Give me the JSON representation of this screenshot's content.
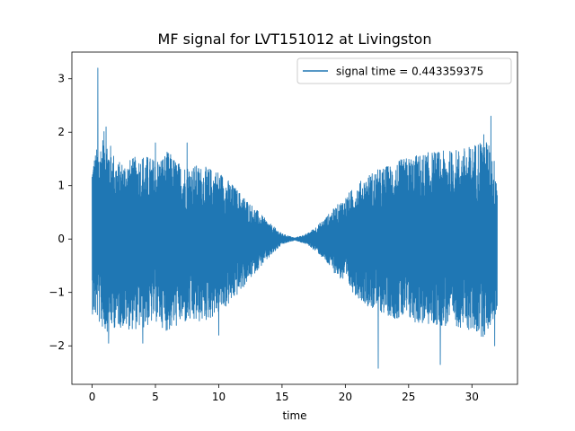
{
  "chart_data": {
    "type": "line",
    "title": "MF signal for LVT151012 at Livingston",
    "xlabel": "time",
    "ylabel": "",
    "xlim": [
      -1.6,
      33.6
    ],
    "ylim": [
      -2.72,
      3.5
    ],
    "xticks": [
      0,
      5,
      10,
      15,
      20,
      25,
      30
    ],
    "yticks": [
      -2,
      -1,
      0,
      1,
      2,
      3
    ],
    "grid": false,
    "legend_position": "top-right",
    "series": [
      {
        "name": "signal time = 0.443359375",
        "color": "#1f77b4",
        "x_range": [
          0,
          32
        ],
        "envelope_x": [
          0,
          1,
          2,
          3,
          4,
          5,
          6,
          7,
          8,
          9,
          10,
          11,
          12,
          13,
          14,
          15,
          16,
          17,
          18,
          19,
          20,
          21,
          22,
          23,
          24,
          25,
          26,
          27,
          28,
          29,
          30,
          31,
          32
        ],
        "envelope_upper": [
          1.5,
          2.05,
          1.45,
          1.5,
          1.6,
          1.5,
          1.65,
          1.4,
          1.4,
          1.35,
          1.3,
          1.05,
          0.8,
          0.55,
          0.3,
          0.1,
          0.02,
          0.1,
          0.3,
          0.55,
          0.8,
          1.05,
          1.25,
          1.35,
          1.45,
          1.55,
          1.6,
          1.65,
          1.65,
          1.7,
          1.75,
          2.0,
          1.35
        ],
        "envelope_lower": [
          -1.4,
          -1.75,
          -1.65,
          -1.7,
          -1.7,
          -1.55,
          -1.75,
          -1.6,
          -1.6,
          -1.55,
          -1.4,
          -1.2,
          -0.9,
          -0.6,
          -0.35,
          -0.1,
          -0.02,
          -0.1,
          -0.3,
          -0.6,
          -0.85,
          -1.1,
          -1.3,
          -1.4,
          -1.5,
          -1.55,
          -1.6,
          -1.65,
          -1.65,
          -1.65,
          -1.75,
          -1.85,
          -1.4
        ],
        "peaks": [
          {
            "x": 0.45,
            "y": 3.2
          },
          {
            "x": 1.1,
            "y": 2.1
          },
          {
            "x": 1.3,
            "y": -1.95
          },
          {
            "x": 4.0,
            "y": -1.95
          },
          {
            "x": 5.0,
            "y": 1.8
          },
          {
            "x": 7.5,
            "y": 1.8
          },
          {
            "x": 10.0,
            "y": -1.8
          },
          {
            "x": 22.6,
            "y": -2.42
          },
          {
            "x": 27.5,
            "y": -2.35
          },
          {
            "x": 31.5,
            "y": 2.3
          },
          {
            "x": 31.8,
            "y": -2.0
          }
        ]
      }
    ]
  }
}
